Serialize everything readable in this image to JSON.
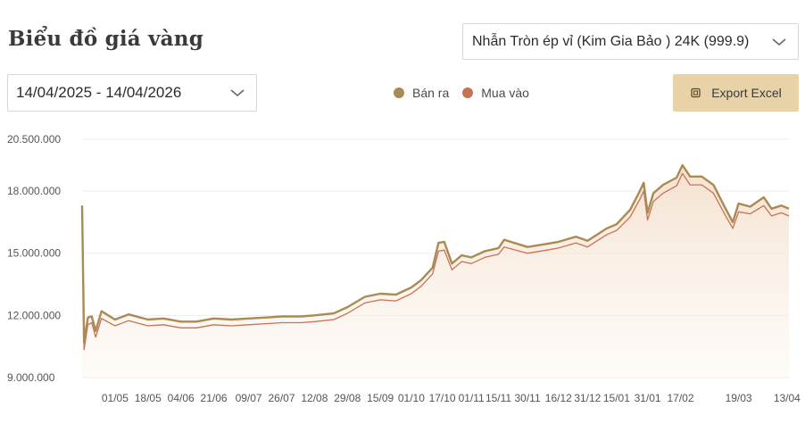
{
  "title": "Biểu đồ giá vàng",
  "product_select": {
    "value": "Nhẫn Tròn ép vỉ (Kim Gia Bảo ) 24K (999.9)"
  },
  "date_range": {
    "value": "14/04/2025 - 14/04/2026"
  },
  "export": {
    "label": "Export Excel"
  },
  "colors": {
    "sell": "#a88b55",
    "buy": "#c77257",
    "grid": "#eeeeee",
    "area": "#f6eadd"
  },
  "chart_data": {
    "type": "line",
    "legend": {
      "position": "top-center"
    },
    "grid": true,
    "ylim": [
      9000000,
      20500000
    ],
    "yticks": [
      9000000,
      12000000,
      15000000,
      18000000,
      20500000
    ],
    "ytick_labels": [
      "9.000.000",
      "12.000.000",
      "15.000.000",
      "18.000.000",
      "20.500.000"
    ],
    "x_tick_labels": [
      "01/05",
      "18/05",
      "04/06",
      "21/06",
      "09/07",
      "26/07",
      "12/08",
      "29/08",
      "15/09",
      "01/10",
      "17/10",
      "01/11",
      "15/11",
      "30/11",
      "16/12",
      "31/12",
      "15/01",
      "31/01",
      "17/02",
      "19/03",
      "13/04"
    ],
    "x_tick_dates": [
      "2025-05-01",
      "2025-05-18",
      "2025-06-04",
      "2025-06-21",
      "2025-07-09",
      "2025-07-26",
      "2025-08-12",
      "2025-08-29",
      "2025-09-15",
      "2025-10-01",
      "2025-10-17",
      "2025-11-01",
      "2025-11-15",
      "2025-11-30",
      "2025-12-16",
      "2025-12-31",
      "2026-01-15",
      "2026-01-31",
      "2026-02-17",
      "2026-03-19",
      "2026-04-13"
    ],
    "series": [
      {
        "name": "Bán ra",
        "points": [
          [
            "2025-04-14",
            17300000
          ],
          [
            "2025-04-15",
            10700000
          ],
          [
            "2025-04-17",
            11900000
          ],
          [
            "2025-04-19",
            11950000
          ],
          [
            "2025-04-21",
            11250000
          ],
          [
            "2025-04-24",
            12200000
          ],
          [
            "2025-05-01",
            11800000
          ],
          [
            "2025-05-08",
            12050000
          ],
          [
            "2025-05-18",
            11800000
          ],
          [
            "2025-05-26",
            11850000
          ],
          [
            "2025-06-04",
            11700000
          ],
          [
            "2025-06-12",
            11700000
          ],
          [
            "2025-06-21",
            11850000
          ],
          [
            "2025-06-30",
            11800000
          ],
          [
            "2025-07-09",
            11850000
          ],
          [
            "2025-07-18",
            11900000
          ],
          [
            "2025-07-26",
            11950000
          ],
          [
            "2025-08-05",
            11950000
          ],
          [
            "2025-08-12",
            12000000
          ],
          [
            "2025-08-22",
            12100000
          ],
          [
            "2025-08-29",
            12400000
          ],
          [
            "2025-09-07",
            12900000
          ],
          [
            "2025-09-15",
            13050000
          ],
          [
            "2025-09-23",
            13000000
          ],
          [
            "2025-10-01",
            13350000
          ],
          [
            "2025-10-06",
            13700000
          ],
          [
            "2025-10-12",
            14300000
          ],
          [
            "2025-10-15",
            15500000
          ],
          [
            "2025-10-18",
            15550000
          ],
          [
            "2025-10-22",
            14500000
          ],
          [
            "2025-10-27",
            14900000
          ],
          [
            "2025-11-01",
            14800000
          ],
          [
            "2025-11-08",
            15100000
          ],
          [
            "2025-11-15",
            15250000
          ],
          [
            "2025-11-18",
            15650000
          ],
          [
            "2025-11-30",
            15300000
          ],
          [
            "2025-12-10",
            15450000
          ],
          [
            "2025-12-16",
            15550000
          ],
          [
            "2025-12-25",
            15800000
          ],
          [
            "2025-12-31",
            15600000
          ],
          [
            "2026-01-10",
            16200000
          ],
          [
            "2026-01-15",
            16400000
          ],
          [
            "2026-01-22",
            17100000
          ],
          [
            "2026-01-27",
            18000000
          ],
          [
            "2026-01-29",
            18400000
          ],
          [
            "2026-01-31",
            16950000
          ],
          [
            "2026-02-03",
            17900000
          ],
          [
            "2026-02-08",
            18300000
          ],
          [
            "2026-02-15",
            18650000
          ],
          [
            "2026-02-18",
            19250000
          ],
          [
            "2026-02-22",
            18700000
          ],
          [
            "2026-02-28",
            18700000
          ],
          [
            "2026-03-06",
            18300000
          ],
          [
            "2026-03-12",
            17200000
          ],
          [
            "2026-03-16",
            16500000
          ],
          [
            "2026-03-19",
            17400000
          ],
          [
            "2026-03-25",
            17250000
          ],
          [
            "2026-04-01",
            17700000
          ],
          [
            "2026-04-05",
            17150000
          ],
          [
            "2026-04-10",
            17300000
          ],
          [
            "2026-04-14",
            17150000
          ]
        ]
      },
      {
        "name": "Mua vào",
        "points": [
          [
            "2025-04-14",
            17300000
          ],
          [
            "2025-04-15",
            10350000
          ],
          [
            "2025-04-17",
            11550000
          ],
          [
            "2025-04-19",
            11650000
          ],
          [
            "2025-04-21",
            10950000
          ],
          [
            "2025-04-24",
            11850000
          ],
          [
            "2025-05-01",
            11500000
          ],
          [
            "2025-05-08",
            11750000
          ],
          [
            "2025-05-18",
            11500000
          ],
          [
            "2025-05-26",
            11550000
          ],
          [
            "2025-06-04",
            11400000
          ],
          [
            "2025-06-12",
            11400000
          ],
          [
            "2025-06-21",
            11550000
          ],
          [
            "2025-06-30",
            11500000
          ],
          [
            "2025-07-09",
            11550000
          ],
          [
            "2025-07-18",
            11600000
          ],
          [
            "2025-07-26",
            11650000
          ],
          [
            "2025-08-05",
            11650000
          ],
          [
            "2025-08-12",
            11700000
          ],
          [
            "2025-08-22",
            11800000
          ],
          [
            "2025-08-29",
            12100000
          ],
          [
            "2025-09-07",
            12600000
          ],
          [
            "2025-09-15",
            12750000
          ],
          [
            "2025-09-23",
            12700000
          ],
          [
            "2025-10-01",
            13050000
          ],
          [
            "2025-10-06",
            13400000
          ],
          [
            "2025-10-12",
            14000000
          ],
          [
            "2025-10-15",
            15100000
          ],
          [
            "2025-10-18",
            15150000
          ],
          [
            "2025-10-22",
            14200000
          ],
          [
            "2025-10-27",
            14600000
          ],
          [
            "2025-11-01",
            14500000
          ],
          [
            "2025-11-08",
            14800000
          ],
          [
            "2025-11-15",
            14950000
          ],
          [
            "2025-11-18",
            15300000
          ],
          [
            "2025-11-30",
            15000000
          ],
          [
            "2025-12-10",
            15150000
          ],
          [
            "2025-12-16",
            15250000
          ],
          [
            "2025-12-25",
            15500000
          ],
          [
            "2025-12-31",
            15300000
          ],
          [
            "2026-01-10",
            15900000
          ],
          [
            "2026-01-15",
            16100000
          ],
          [
            "2026-01-22",
            16750000
          ],
          [
            "2026-01-27",
            17600000
          ],
          [
            "2026-01-29",
            18000000
          ],
          [
            "2026-01-31",
            16600000
          ],
          [
            "2026-02-03",
            17500000
          ],
          [
            "2026-02-08",
            17900000
          ],
          [
            "2026-02-15",
            18250000
          ],
          [
            "2026-02-18",
            18850000
          ],
          [
            "2026-02-22",
            18300000
          ],
          [
            "2026-02-28",
            18300000
          ],
          [
            "2026-03-06",
            17900000
          ],
          [
            "2026-03-12",
            16850000
          ],
          [
            "2026-03-16",
            16200000
          ],
          [
            "2026-03-19",
            17000000
          ],
          [
            "2026-03-25",
            16900000
          ],
          [
            "2026-04-01",
            17300000
          ],
          [
            "2026-04-05",
            16800000
          ],
          [
            "2026-04-10",
            16950000
          ],
          [
            "2026-04-14",
            16800000
          ]
        ]
      }
    ]
  }
}
